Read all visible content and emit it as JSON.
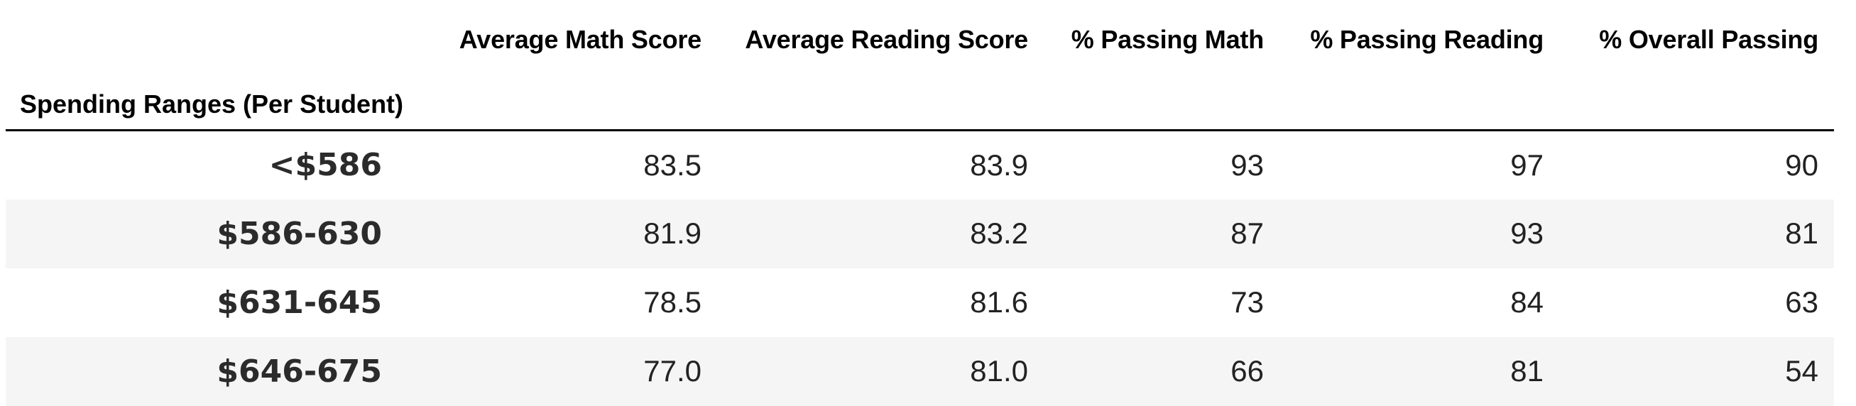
{
  "table": {
    "index_name": "Spending Ranges (Per Student)",
    "columns": [
      "Average Math Score",
      "Average Reading Score",
      "% Passing Math",
      "% Passing Reading",
      "% Overall Passing"
    ],
    "rows": [
      {
        "label": "<$586",
        "cells": [
          "83.5",
          "83.9",
          "93",
          "97",
          "90"
        ]
      },
      {
        "label": "$586-630",
        "cells": [
          "81.9",
          "83.2",
          "87",
          "93",
          "81"
        ]
      },
      {
        "label": "$631-645",
        "cells": [
          "78.5",
          "81.6",
          "73",
          "84",
          "63"
        ]
      },
      {
        "label": "$646-675",
        "cells": [
          "77.0",
          "81.0",
          "66",
          "81",
          "54"
        ]
      }
    ]
  }
}
